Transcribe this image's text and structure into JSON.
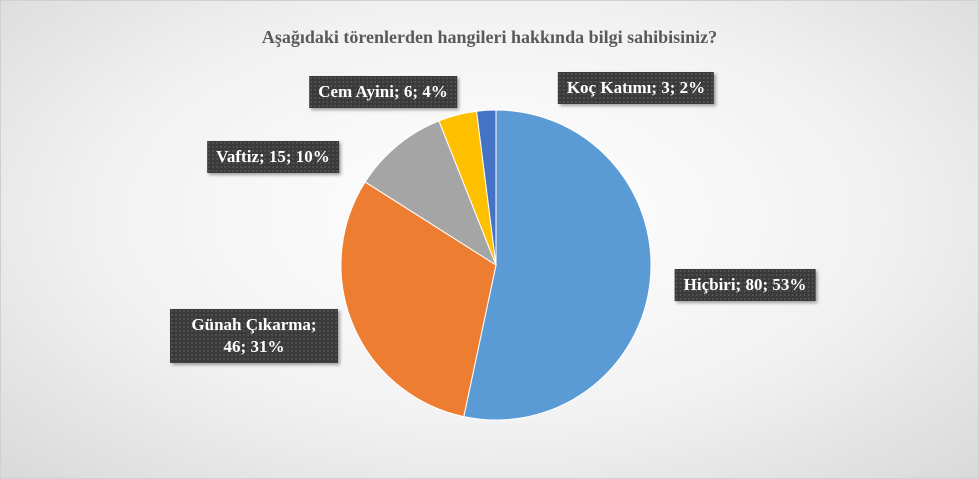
{
  "chart_data": {
    "type": "pie",
    "title": "Aşağıdaki törenlerden hangileri hakkında bilgi sahibisiniz?",
    "categories": [
      "Hiçbiri",
      "Günah Çıkarma",
      "Vaftiz",
      "Cem Ayini",
      "Koç Katımı"
    ],
    "values": [
      80,
      46,
      15,
      6,
      3
    ],
    "value_labels": [
      "Hiçbiri; 80; 53%",
      "Günah Çıkarma; 46; 31%",
      "Vaftiz; 15; 10%",
      "Cem Ayini; 6; 4%",
      "Koç Katımı; 3; 2%"
    ],
    "colors": [
      "#5b9bd5",
      "#ed7d31",
      "#a5a5a5",
      "#ffc000",
      "#4472c4"
    ]
  }
}
